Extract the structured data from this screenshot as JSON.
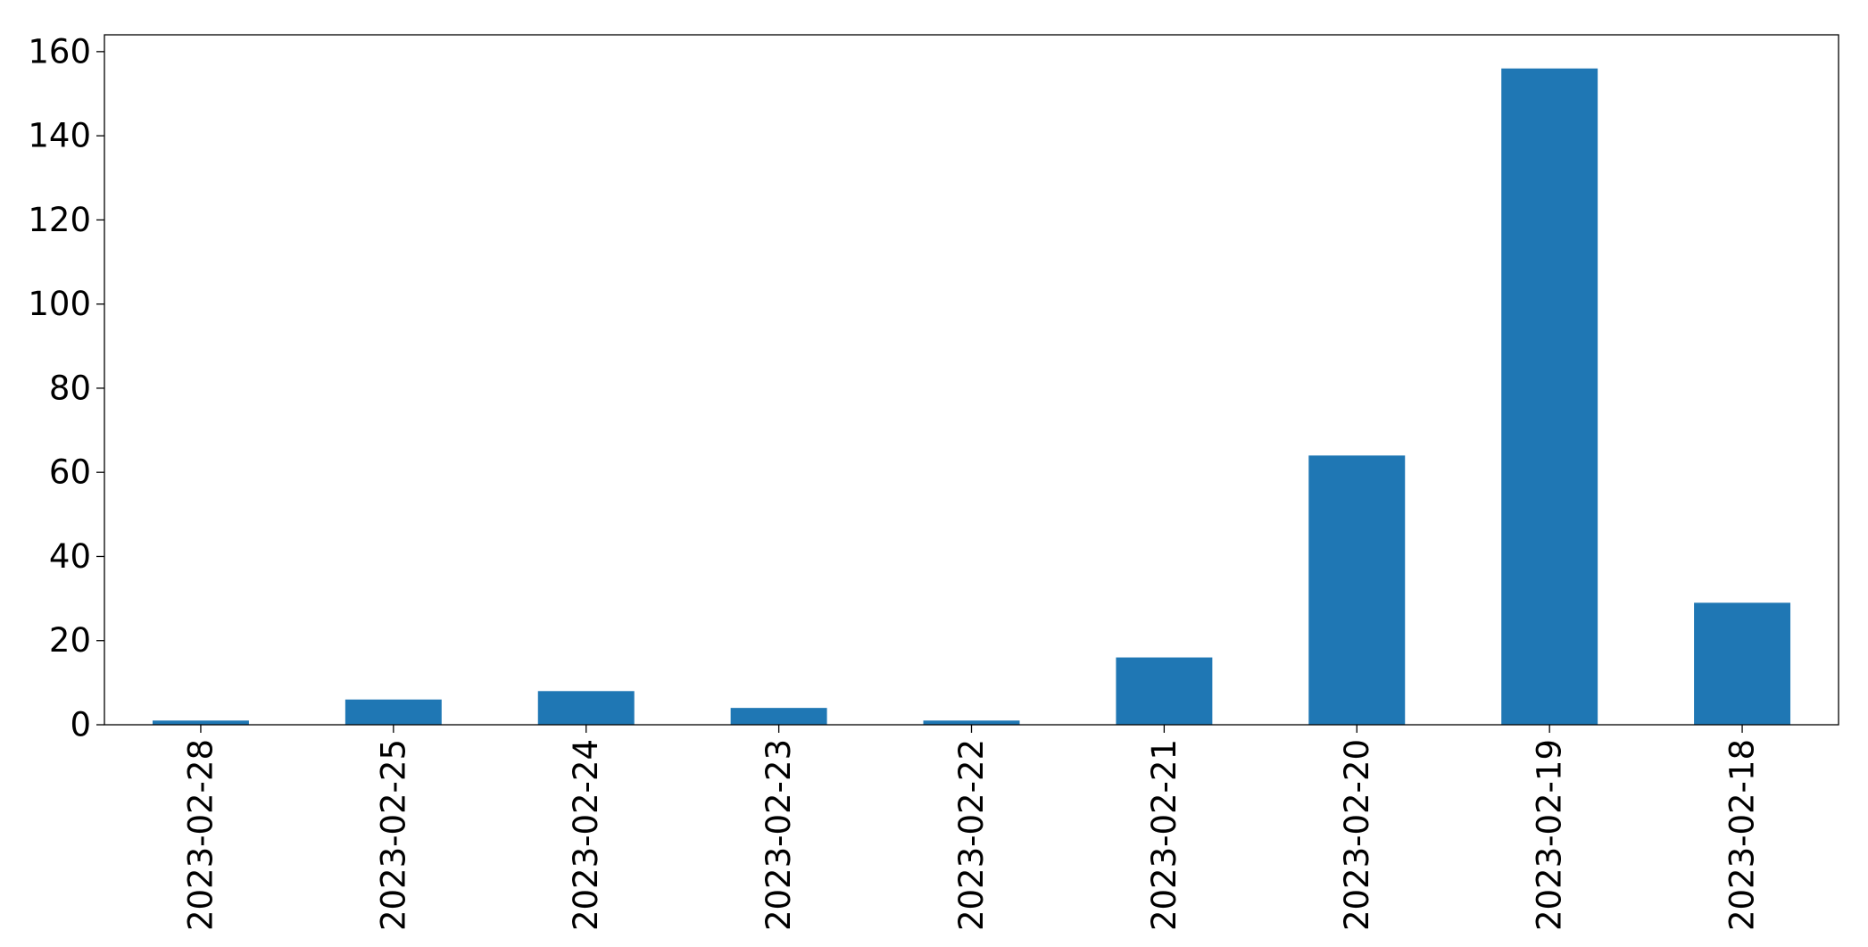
{
  "chart_data": {
    "type": "bar",
    "categories": [
      "2023-02-28",
      "2023-02-25",
      "2023-02-24",
      "2023-02-23",
      "2023-02-22",
      "2023-02-21",
      "2023-02-20",
      "2023-02-19",
      "2023-02-18"
    ],
    "values": [
      1,
      6,
      8,
      4,
      1,
      16,
      64,
      156,
      29
    ],
    "title": "",
    "xlabel": "",
    "ylabel": "",
    "ylim": [
      0,
      164
    ],
    "yticks": [
      0,
      20,
      40,
      60,
      80,
      100,
      120,
      140,
      160
    ],
    "grid": false,
    "legend": "none",
    "bar_color": "#1f77b4",
    "xtick_rotation": "vertical"
  }
}
